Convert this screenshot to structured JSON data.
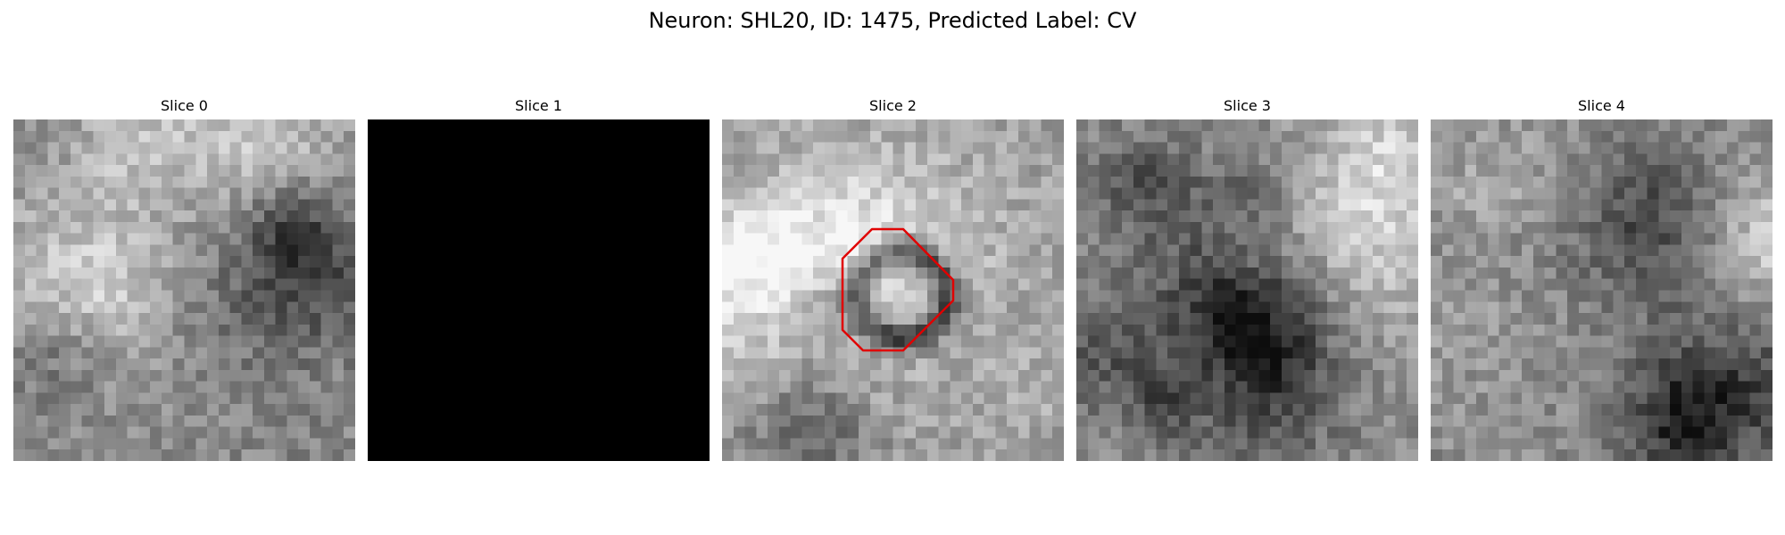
{
  "figure": {
    "title": "Neuron: SHL20, ID: 1475, Predicted Label: CV"
  },
  "panels": [
    {
      "title": "Slice 0",
      "mean_intensity": 0.55,
      "texture": "mottled",
      "blank": false,
      "has_contour": false
    },
    {
      "title": "Slice 1",
      "mean_intensity": 0.0,
      "texture": "uniform",
      "blank": true,
      "has_contour": false
    },
    {
      "title": "Slice 2",
      "mean_intensity": 0.62,
      "texture": "centered-cell",
      "blank": false,
      "has_contour": true
    },
    {
      "title": "Slice 3",
      "mean_intensity": 0.55,
      "texture": "centered-dark-blob",
      "blank": false,
      "has_contour": false
    },
    {
      "title": "Slice 4",
      "mean_intensity": 0.55,
      "texture": "mottled",
      "blank": false,
      "has_contour": false
    }
  ],
  "contour": {
    "color": "#e00000"
  },
  "colormap": "gray"
}
